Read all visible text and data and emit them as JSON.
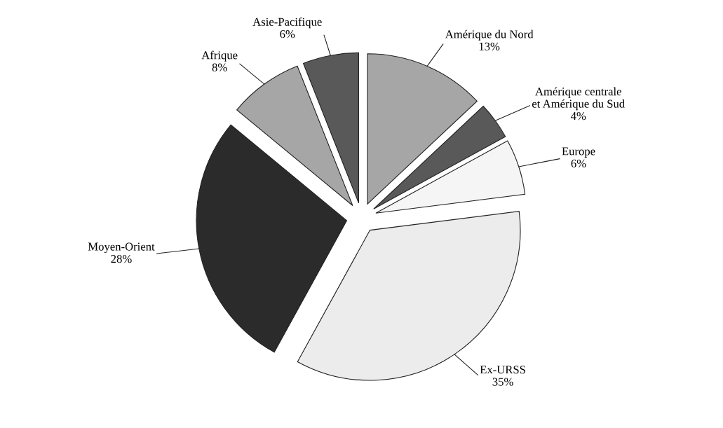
{
  "chart_data": {
    "type": "pie",
    "categories": [
      "Amérique du Nord",
      "Amérique centrale\net Amérique du Sud",
      "Europe",
      "Ex-URSS",
      "Moyen-Orient",
      "Afrique",
      "Asie-Pacifique"
    ],
    "values": [
      13,
      4,
      6,
      35,
      28,
      8,
      6
    ],
    "value_labels": [
      "13%",
      "4%",
      "6%",
      "35%",
      "28%",
      "8%",
      "6%"
    ],
    "colors": [
      "#a6a6a6",
      "#595959",
      "#f5f5f5",
      "#ececec",
      "#2b2b2b",
      "#a6a6a6",
      "#595959"
    ]
  }
}
